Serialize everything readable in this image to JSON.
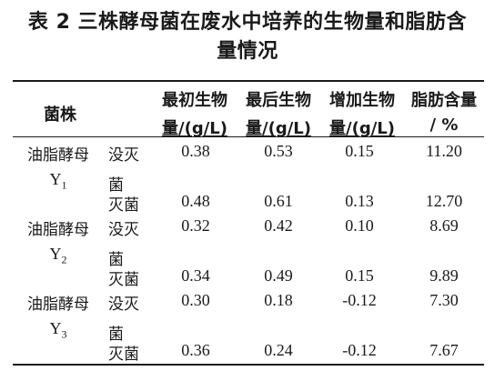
{
  "title": {
    "line1": "表 2  三株酵母菌在废水中培养的生物量和脂肪含",
    "line2": "量情况"
  },
  "headers": {
    "strain": "菌株",
    "initial": [
      "最初生物",
      "量/(g/L)"
    ],
    "final": [
      "最后生物",
      "量/(g/L)"
    ],
    "increase": [
      "增加生物",
      "量/(g/L)"
    ],
    "fat": [
      "脂肪含量",
      "/ %"
    ]
  },
  "strains": [
    {
      "name": "油脂酵母",
      "id": "Y",
      "sub": "1"
    },
    {
      "name": "油脂酵母",
      "id": "Y",
      "sub": "2"
    },
    {
      "name": "油脂酵母",
      "id": "Y",
      "sub": "3"
    }
  ],
  "treatments": {
    "unsterilized": [
      "没灭",
      "菌"
    ],
    "sterilized": "灭菌"
  },
  "rows": [
    {
      "initial": "0.38",
      "final": "0.53",
      "increase": "0.15",
      "fat": "11.20"
    },
    {
      "initial": "0.48",
      "final": "0.61",
      "increase": "0.13",
      "fat": "12.70"
    },
    {
      "initial": "0.32",
      "final": "0.42",
      "increase": "0.10",
      "fat": "8.69"
    },
    {
      "initial": "0.34",
      "final": "0.49",
      "increase": "0.15",
      "fat": "9.89"
    },
    {
      "initial": "0.30",
      "final": "0.18",
      "increase": "-0.12",
      "fat": "7.30"
    },
    {
      "initial": "0.36",
      "final": "0.24",
      "increase": "-0.12",
      "fat": "7.67"
    }
  ]
}
